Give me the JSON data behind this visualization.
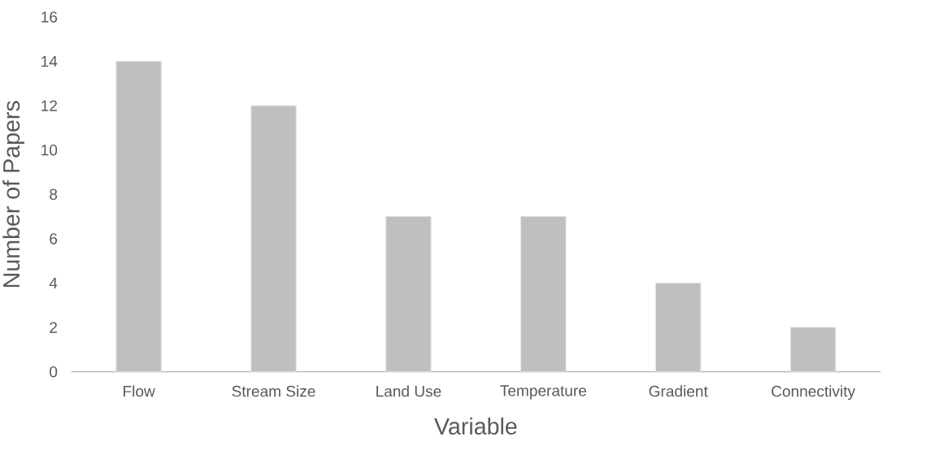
{
  "chart_data": {
    "type": "bar",
    "xlabel": "Variable",
    "ylabel": "Number of Papers",
    "categories": [
      "Flow",
      "Stream Size",
      "Land Use",
      "Temperature",
      "Gradient",
      "Connectivity"
    ],
    "values": [
      14,
      12,
      7,
      7,
      4,
      2
    ],
    "color": "#bfbfbf",
    "ylim": [
      0,
      16
    ],
    "yticks": [
      0,
      2,
      4,
      6,
      8,
      10,
      12,
      14,
      16
    ]
  }
}
